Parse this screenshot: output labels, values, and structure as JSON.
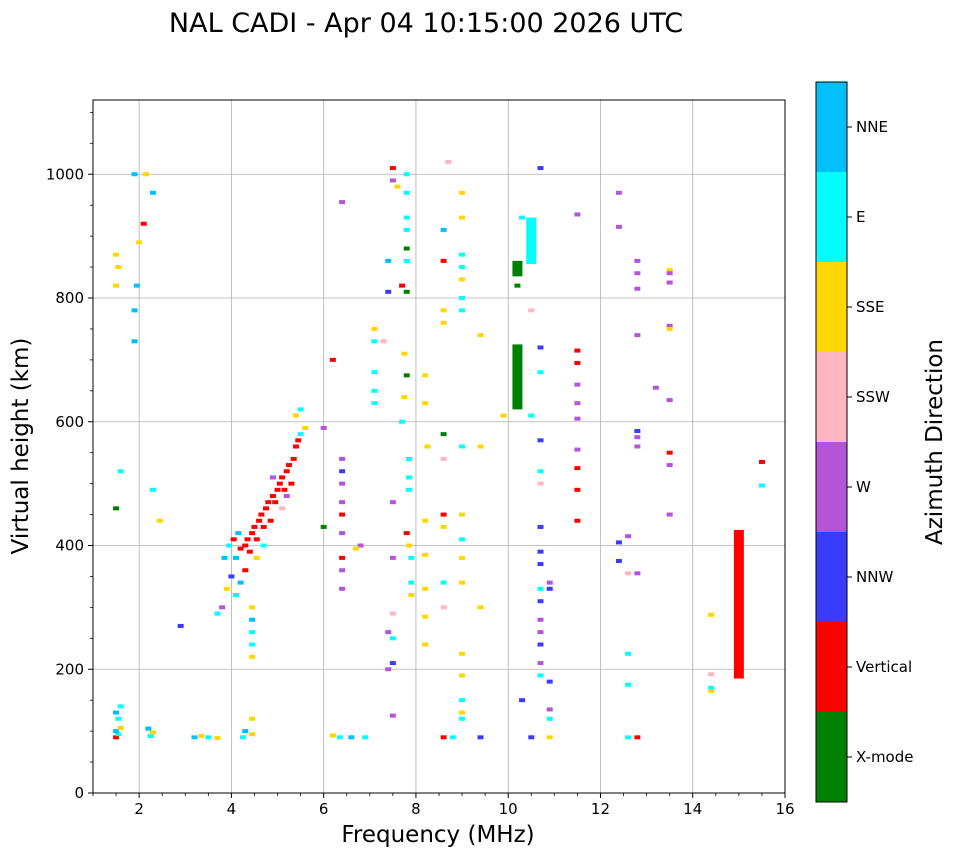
{
  "chart_data": {
    "type": "scatter",
    "title": "NAL CADI - Apr 04 10:15:00 2026 UTC",
    "xlabel": "Frequency (MHz)",
    "ylabel": "Virtual height (km)",
    "xlim": [
      1,
      16
    ],
    "ylim": [
      0,
      1120
    ],
    "xticks": [
      2,
      4,
      6,
      8,
      10,
      12,
      14,
      16
    ],
    "yticks": [
      0,
      200,
      400,
      600,
      800,
      1000
    ],
    "grid": true,
    "colorbar": {
      "label": "Azimuth Direction",
      "categories": [
        {
          "name": "X-mode",
          "color": "#008000"
        },
        {
          "name": "Vertical",
          "color": "#ff0000"
        },
        {
          "name": "NNW",
          "color": "#3b3bff"
        },
        {
          "name": "W",
          "color": "#b455d9"
        },
        {
          "name": "SSW",
          "color": "#ffb6c1"
        },
        {
          "name": "SSE",
          "color": "#ffd700"
        },
        {
          "name": "E",
          "color": "#00ffff"
        },
        {
          "name": "NNE",
          "color": "#00bfff"
        }
      ]
    },
    "points": [
      [
        1.5,
        90,
        "Vertical"
      ],
      [
        1.55,
        95,
        "E"
      ],
      [
        1.5,
        100,
        "NNE"
      ],
      [
        1.6,
        105,
        "SSE"
      ],
      [
        1.55,
        120,
        "E"
      ],
      [
        1.5,
        130,
        "NNE"
      ],
      [
        1.6,
        140,
        "E"
      ],
      [
        2.25,
        92,
        "E"
      ],
      [
        2.3,
        98,
        "SSE"
      ],
      [
        2.2,
        104,
        "NNE"
      ],
      [
        3.2,
        90,
        "NNE"
      ],
      [
        3.35,
        92,
        "SSE"
      ],
      [
        3.5,
        90,
        "E"
      ],
      [
        3.7,
        89,
        "SSE"
      ],
      [
        4.25,
        90,
        "E"
      ],
      [
        4.3,
        100,
        "NNE"
      ],
      [
        4.45,
        95,
        "SSE"
      ],
      [
        4.45,
        120,
        "SSE"
      ],
      [
        4.45,
        220,
        "SSE"
      ],
      [
        4.45,
        240,
        "E"
      ],
      [
        4.45,
        260,
        "E"
      ],
      [
        4.45,
        280,
        "NNE"
      ],
      [
        4.45,
        300,
        "SSE"
      ],
      [
        6.2,
        93,
        "SSE"
      ],
      [
        6.35,
        90,
        "E"
      ],
      [
        6.6,
        90,
        "NNE"
      ],
      [
        6.9,
        90,
        "E"
      ],
      [
        1.5,
        460,
        "X-mode"
      ],
      [
        1.6,
        520,
        "E"
      ],
      [
        2.3,
        490,
        "E"
      ],
      [
        2.45,
        440,
        "SSE"
      ],
      [
        1.5,
        820,
        "SSE"
      ],
      [
        1.55,
        850,
        "SSE"
      ],
      [
        1.5,
        870,
        "SSE"
      ],
      [
        1.9,
        730,
        "NNE"
      ],
      [
        1.9,
        780,
        "NNE"
      ],
      [
        1.95,
        820,
        "NNE"
      ],
      [
        2.0,
        890,
        "SSE"
      ],
      [
        2.1,
        920,
        "Vertical"
      ],
      [
        1.9,
        1000,
        "NNE"
      ],
      [
        2.15,
        1000,
        "SSE"
      ],
      [
        2.3,
        970,
        "NNE"
      ],
      [
        3.85,
        380,
        "NNE"
      ],
      [
        3.95,
        400,
        "E"
      ],
      [
        4.05,
        410,
        "Vertical"
      ],
      [
        4.1,
        380,
        "NNE"
      ],
      [
        4.15,
        420,
        "NNE"
      ],
      [
        4.2,
        395,
        "Vertical"
      ],
      [
        4.3,
        400,
        "Vertical"
      ],
      [
        4.35,
        410,
        "Vertical"
      ],
      [
        4.4,
        390,
        "Vertical"
      ],
      [
        4.45,
        420,
        "Vertical"
      ],
      [
        4.5,
        430,
        "Vertical"
      ],
      [
        4.55,
        410,
        "Vertical"
      ],
      [
        4.6,
        440,
        "Vertical"
      ],
      [
        4.65,
        450,
        "Vertical"
      ],
      [
        4.7,
        430,
        "Vertical"
      ],
      [
        4.75,
        460,
        "Vertical"
      ],
      [
        4.8,
        470,
        "Vertical"
      ],
      [
        4.85,
        440,
        "Vertical"
      ],
      [
        4.9,
        480,
        "Vertical"
      ],
      [
        4.95,
        470,
        "Vertical"
      ],
      [
        5.0,
        490,
        "Vertical"
      ],
      [
        5.05,
        500,
        "Vertical"
      ],
      [
        5.1,
        510,
        "Vertical"
      ],
      [
        5.15,
        490,
        "Vertical"
      ],
      [
        5.2,
        520,
        "Vertical"
      ],
      [
        5.25,
        530,
        "Vertical"
      ],
      [
        5.3,
        500,
        "Vertical"
      ],
      [
        5.35,
        540,
        "Vertical"
      ],
      [
        5.4,
        560,
        "Vertical"
      ],
      [
        5.45,
        570,
        "Vertical"
      ],
      [
        5.5,
        580,
        "E"
      ],
      [
        5.6,
        590,
        "SSE"
      ],
      [
        5.5,
        620,
        "E"
      ],
      [
        5.4,
        610,
        "SSE"
      ],
      [
        4.9,
        510,
        "W"
      ],
      [
        5.1,
        460,
        "SSW"
      ],
      [
        5.2,
        480,
        "W"
      ],
      [
        4.7,
        400,
        "E"
      ],
      [
        4.55,
        380,
        "SSE"
      ],
      [
        4.3,
        360,
        "Vertical"
      ],
      [
        4.2,
        340,
        "NNE"
      ],
      [
        4.1,
        320,
        "E"
      ],
      [
        4.0,
        350,
        "NNW"
      ],
      [
        3.9,
        330,
        "SSE"
      ],
      [
        3.8,
        300,
        "W"
      ],
      [
        3.7,
        290,
        "E"
      ],
      [
        2.9,
        270,
        "NNW"
      ],
      [
        6.4,
        540,
        "W"
      ],
      [
        6.4,
        520,
        "NNW"
      ],
      [
        6.4,
        500,
        "W"
      ],
      [
        6.4,
        470,
        "W"
      ],
      [
        6.4,
        450,
        "Vertical"
      ],
      [
        6.4,
        420,
        "W"
      ],
      [
        6.4,
        380,
        "Vertical"
      ],
      [
        6.4,
        360,
        "W"
      ],
      [
        6.4,
        330,
        "W"
      ],
      [
        6.0,
        430,
        "X-mode"
      ],
      [
        6.0,
        590,
        "W"
      ],
      [
        6.2,
        700,
        "Vertical"
      ],
      [
        6.4,
        955,
        "W"
      ],
      [
        6.8,
        400,
        "W"
      ],
      [
        6.7,
        395,
        "SSE"
      ],
      [
        7.1,
        680,
        "E"
      ],
      [
        7.1,
        650,
        "E"
      ],
      [
        7.1,
        630,
        "E"
      ],
      [
        7.1,
        750,
        "SSE"
      ],
      [
        7.1,
        730,
        "E"
      ],
      [
        7.3,
        730,
        "SSW"
      ],
      [
        7.4,
        860,
        "NNE"
      ],
      [
        7.4,
        810,
        "NNW"
      ],
      [
        7.5,
        1010,
        "Vertical"
      ],
      [
        7.5,
        990,
        "W"
      ],
      [
        7.6,
        980,
        "SSE"
      ],
      [
        7.7,
        820,
        "Vertical"
      ],
      [
        7.8,
        1000,
        "E"
      ],
      [
        7.8,
        970,
        "E"
      ],
      [
        7.8,
        930,
        "E"
      ],
      [
        7.8,
        910,
        "E"
      ],
      [
        7.8,
        880,
        "X-mode"
      ],
      [
        7.8,
        860,
        "E"
      ],
      [
        7.8,
        810,
        "X-mode"
      ],
      [
        7.75,
        710,
        "SSE"
      ],
      [
        7.8,
        675,
        "X-mode"
      ],
      [
        7.75,
        640,
        "SSE"
      ],
      [
        7.7,
        600,
        "E"
      ],
      [
        7.85,
        540,
        "E"
      ],
      [
        7.85,
        510,
        "E"
      ],
      [
        7.85,
        490,
        "E"
      ],
      [
        7.8,
        420,
        "Vertical"
      ],
      [
        7.85,
        400,
        "SSE"
      ],
      [
        7.9,
        380,
        "E"
      ],
      [
        7.9,
        340,
        "E"
      ],
      [
        7.9,
        320,
        "SSE"
      ],
      [
        7.5,
        470,
        "W"
      ],
      [
        7.5,
        380,
        "W"
      ],
      [
        7.5,
        290,
        "SSW"
      ],
      [
        7.5,
        250,
        "E"
      ],
      [
        7.5,
        210,
        "NNW"
      ],
      [
        7.5,
        125,
        "W"
      ],
      [
        7.4,
        260,
        "W"
      ],
      [
        7.4,
        200,
        "W"
      ],
      [
        8.2,
        675,
        "SSE"
      ],
      [
        8.2,
        630,
        "SSE"
      ],
      [
        8.25,
        560,
        "SSE"
      ],
      [
        8.2,
        440,
        "SSE"
      ],
      [
        8.2,
        385,
        "SSE"
      ],
      [
        8.2,
        330,
        "SSE"
      ],
      [
        8.2,
        285,
        "SSE"
      ],
      [
        8.2,
        240,
        "SSE"
      ],
      [
        8.6,
        910,
        "NNE"
      ],
      [
        8.6,
        860,
        "Vertical"
      ],
      [
        8.6,
        780,
        "SSE"
      ],
      [
        8.6,
        760,
        "SSE"
      ],
      [
        8.6,
        580,
        "X-mode"
      ],
      [
        8.6,
        540,
        "SSW"
      ],
      [
        8.6,
        450,
        "Vertical"
      ],
      [
        8.6,
        430,
        "SSE"
      ],
      [
        8.6,
        340,
        "E"
      ],
      [
        8.6,
        300,
        "SSW"
      ],
      [
        8.6,
        90,
        "Vertical"
      ],
      [
        8.8,
        90,
        "E"
      ],
      [
        8.7,
        1020,
        "SSW"
      ],
      [
        9.0,
        970,
        "SSE"
      ],
      [
        9.0,
        930,
        "SSE"
      ],
      [
        9.0,
        870,
        "E"
      ],
      [
        9.0,
        850,
        "E"
      ],
      [
        9.0,
        830,
        "SSE"
      ],
      [
        9.0,
        800,
        "E"
      ],
      [
        9.0,
        780,
        "E"
      ],
      [
        9.0,
        560,
        "E"
      ],
      [
        9.0,
        450,
        "SSE"
      ],
      [
        9.0,
        410,
        "E"
      ],
      [
        9.0,
        380,
        "SSE"
      ],
      [
        9.0,
        340,
        "SSE"
      ],
      [
        9.0,
        225,
        "SSE"
      ],
      [
        9.0,
        190,
        "SSE"
      ],
      [
        9.0,
        150,
        "E"
      ],
      [
        9.0,
        130,
        "SSE"
      ],
      [
        9.0,
        120,
        "E"
      ],
      [
        9.4,
        740,
        "SSE"
      ],
      [
        9.4,
        560,
        "SSE"
      ],
      [
        9.4,
        300,
        "SSE"
      ],
      [
        9.4,
        90,
        "NNW"
      ],
      [
        9.9,
        610,
        "SSE"
      ],
      [
        10.2,
        820,
        "X-mode"
      ],
      [
        10.3,
        930,
        "E"
      ],
      [
        10.5,
        920,
        "SSW"
      ],
      [
        10.5,
        900,
        "NNW"
      ],
      [
        10.5,
        780,
        "SSW"
      ],
      [
        10.5,
        610,
        "E"
      ],
      [
        10.7,
        1010,
        "NNW"
      ],
      [
        10.7,
        720,
        "NNW"
      ],
      [
        10.7,
        680,
        "E"
      ],
      [
        10.7,
        570,
        "NNW"
      ],
      [
        10.7,
        520,
        "E"
      ],
      [
        10.7,
        500,
        "SSW"
      ],
      [
        10.7,
        430,
        "NNW"
      ],
      [
        10.7,
        390,
        "NNW"
      ],
      [
        10.7,
        370,
        "NNW"
      ],
      [
        10.7,
        330,
        "E"
      ],
      [
        10.7,
        310,
        "NNW"
      ],
      [
        10.7,
        280,
        "W"
      ],
      [
        10.7,
        260,
        "W"
      ],
      [
        10.7,
        240,
        "NNW"
      ],
      [
        10.7,
        210,
        "W"
      ],
      [
        10.7,
        190,
        "E"
      ],
      [
        10.9,
        340,
        "W"
      ],
      [
        10.9,
        330,
        "NNW"
      ],
      [
        10.9,
        180,
        "NNW"
      ],
      [
        10.9,
        135,
        "W"
      ],
      [
        10.9,
        120,
        "E"
      ],
      [
        10.9,
        90,
        "SSE"
      ],
      [
        10.5,
        90,
        "NNW"
      ],
      [
        10.3,
        150,
        "NNW"
      ],
      [
        11.5,
        935,
        "W"
      ],
      [
        11.5,
        715,
        "Vertical"
      ],
      [
        11.5,
        695,
        "Vertical"
      ],
      [
        11.5,
        660,
        "W"
      ],
      [
        11.5,
        630,
        "W"
      ],
      [
        11.5,
        605,
        "W"
      ],
      [
        11.5,
        555,
        "W"
      ],
      [
        11.5,
        525,
        "Vertical"
      ],
      [
        11.5,
        490,
        "Vertical"
      ],
      [
        11.5,
        440,
        "Vertical"
      ],
      [
        12.4,
        970,
        "W"
      ],
      [
        12.4,
        915,
        "W"
      ],
      [
        12.4,
        405,
        "NNW"
      ],
      [
        12.4,
        375,
        "NNW"
      ],
      [
        12.6,
        415,
        "W"
      ],
      [
        12.6,
        355,
        "SSW"
      ],
      [
        12.6,
        225,
        "E"
      ],
      [
        12.6,
        175,
        "E"
      ],
      [
        12.6,
        90,
        "E"
      ],
      [
        12.8,
        90,
        "Vertical"
      ],
      [
        12.8,
        860,
        "W"
      ],
      [
        12.8,
        840,
        "W"
      ],
      [
        12.8,
        815,
        "W"
      ],
      [
        12.8,
        740,
        "W"
      ],
      [
        12.8,
        585,
        "NNW"
      ],
      [
        12.8,
        575,
        "W"
      ],
      [
        12.8,
        560,
        "W"
      ],
      [
        12.8,
        355,
        "W"
      ],
      [
        13.2,
        655,
        "W"
      ],
      [
        13.5,
        845,
        "SSE"
      ],
      [
        13.5,
        840,
        "W"
      ],
      [
        13.5,
        825,
        "W"
      ],
      [
        13.5,
        755,
        "W"
      ],
      [
        13.5,
        750,
        "SSE"
      ],
      [
        13.5,
        635,
        "W"
      ],
      [
        13.5,
        550,
        "Vertical"
      ],
      [
        13.5,
        530,
        "W"
      ],
      [
        13.5,
        450,
        "W"
      ],
      [
        14.4,
        288,
        "SSE"
      ],
      [
        14.4,
        192,
        "SSW"
      ],
      [
        14.4,
        170,
        "E"
      ],
      [
        14.4,
        165,
        "SSE"
      ],
      [
        15.5,
        535,
        "Vertical"
      ],
      [
        15.5,
        497,
        "E"
      ]
    ],
    "bars": [
      {
        "x": 10.2,
        "y0": 835,
        "y1": 860,
        "category": "X-mode"
      },
      {
        "x": 10.2,
        "y0": 620,
        "y1": 725,
        "category": "X-mode"
      },
      {
        "x": 10.5,
        "y0": 855,
        "y1": 930,
        "category": "E"
      },
      {
        "x": 15.0,
        "y0": 185,
        "y1": 425,
        "category": "Vertical"
      }
    ]
  }
}
